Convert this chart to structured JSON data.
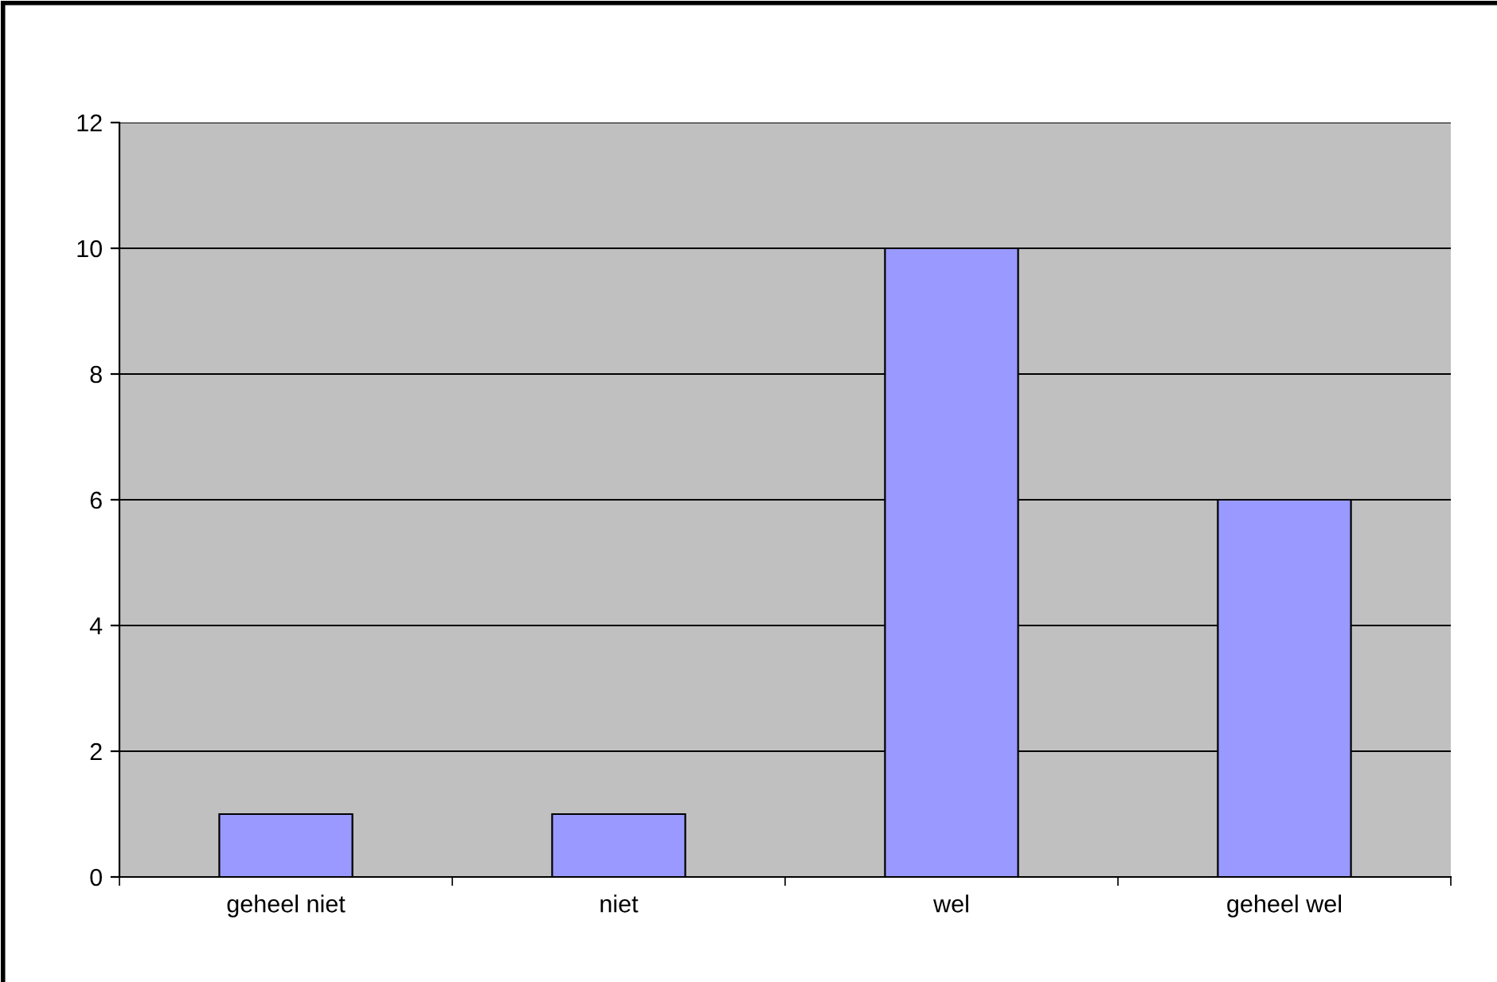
{
  "chart_data": {
    "type": "bar",
    "categories": [
      "geheel niet",
      "niet",
      "wel",
      "geheel wel"
    ],
    "values": [
      1,
      1,
      10,
      6
    ],
    "color": "#9999ff",
    "ylim": [
      0,
      12
    ],
    "yticks": [
      0,
      2,
      4,
      6,
      8,
      10,
      12
    ],
    "grid": "y",
    "legend": false
  }
}
